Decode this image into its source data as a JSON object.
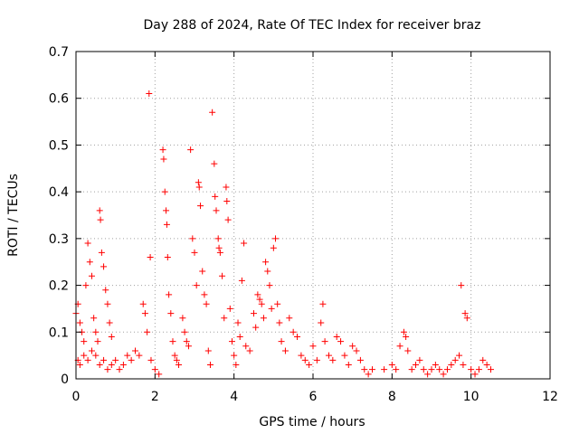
{
  "chart_data": {
    "type": "scatter",
    "title": "Day 288 of 2024, Rate Of TEC Index for receiver braz",
    "xlabel": "GPS time / hours",
    "ylabel": "ROTI / TECUs",
    "xlim": [
      0,
      12
    ],
    "ylim": [
      0,
      0.7
    ],
    "xticks": [
      0,
      2,
      4,
      6,
      8,
      10,
      12
    ],
    "yticks": [
      0,
      0.1,
      0.2,
      0.3,
      0.4,
      0.5,
      0.6,
      0.7
    ],
    "xtick_labels": [
      "0",
      "2",
      "4",
      "6",
      "8",
      "10",
      "12"
    ],
    "ytick_labels": [
      "0",
      "0.1",
      "0.2",
      "0.3",
      "0.4",
      "0.5",
      "0.6",
      "0.7"
    ],
    "grid": true,
    "marker": "+",
    "color": "#ff0000",
    "series": [
      {
        "points": [
          [
            0.0,
            0.14
          ],
          [
            0.05,
            0.16
          ],
          [
            0.1,
            0.12
          ],
          [
            0.15,
            0.1
          ],
          [
            0.2,
            0.08
          ],
          [
            0.25,
            0.2
          ],
          [
            0.3,
            0.29
          ],
          [
            0.35,
            0.25
          ],
          [
            0.4,
            0.22
          ],
          [
            0.45,
            0.13
          ],
          [
            0.5,
            0.1
          ],
          [
            0.55,
            0.08
          ],
          [
            0.6,
            0.36
          ],
          [
            0.62,
            0.34
          ],
          [
            0.65,
            0.27
          ],
          [
            0.7,
            0.24
          ],
          [
            0.75,
            0.19
          ],
          [
            0.8,
            0.16
          ],
          [
            0.85,
            0.12
          ],
          [
            0.9,
            0.09
          ],
          [
            0.05,
            0.04
          ],
          [
            0.1,
            0.03
          ],
          [
            0.2,
            0.05
          ],
          [
            0.3,
            0.04
          ],
          [
            0.4,
            0.06
          ],
          [
            0.5,
            0.05
          ],
          [
            0.6,
            0.03
          ],
          [
            0.7,
            0.04
          ],
          [
            0.8,
            0.02
          ],
          [
            0.9,
            0.03
          ],
          [
            1.0,
            0.04
          ],
          [
            1.1,
            0.02
          ],
          [
            1.2,
            0.03
          ],
          [
            1.3,
            0.05
          ],
          [
            1.4,
            0.04
          ],
          [
            1.5,
            0.06
          ],
          [
            1.6,
            0.05
          ],
          [
            1.7,
            0.16
          ],
          [
            1.75,
            0.14
          ],
          [
            1.8,
            0.1
          ],
          [
            1.85,
            0.61
          ],
          [
            1.88,
            0.26
          ],
          [
            1.9,
            0.04
          ],
          [
            2.0,
            0.02
          ],
          [
            2.1,
            0.01
          ],
          [
            2.2,
            0.49
          ],
          [
            2.22,
            0.47
          ],
          [
            2.25,
            0.4
          ],
          [
            2.28,
            0.36
          ],
          [
            2.3,
            0.33
          ],
          [
            2.32,
            0.26
          ],
          [
            2.35,
            0.18
          ],
          [
            2.4,
            0.14
          ],
          [
            2.45,
            0.08
          ],
          [
            2.5,
            0.05
          ],
          [
            2.55,
            0.04
          ],
          [
            2.6,
            0.03
          ],
          [
            2.7,
            0.13
          ],
          [
            2.75,
            0.1
          ],
          [
            2.8,
            0.08
          ],
          [
            2.85,
            0.07
          ],
          [
            2.9,
            0.49
          ],
          [
            2.95,
            0.3
          ],
          [
            3.0,
            0.27
          ],
          [
            3.05,
            0.2
          ],
          [
            3.1,
            0.42
          ],
          [
            3.12,
            0.41
          ],
          [
            3.15,
            0.37
          ],
          [
            3.2,
            0.23
          ],
          [
            3.25,
            0.18
          ],
          [
            3.3,
            0.16
          ],
          [
            3.35,
            0.06
          ],
          [
            3.4,
            0.03
          ],
          [
            3.45,
            0.57
          ],
          [
            3.5,
            0.46
          ],
          [
            3.52,
            0.39
          ],
          [
            3.55,
            0.36
          ],
          [
            3.6,
            0.3
          ],
          [
            3.62,
            0.28
          ],
          [
            3.65,
            0.27
          ],
          [
            3.7,
            0.22
          ],
          [
            3.75,
            0.13
          ],
          [
            3.8,
            0.41
          ],
          [
            3.82,
            0.38
          ],
          [
            3.85,
            0.34
          ],
          [
            3.9,
            0.15
          ],
          [
            3.95,
            0.08
          ],
          [
            4.0,
            0.05
          ],
          [
            4.05,
            0.03
          ],
          [
            4.1,
            0.12
          ],
          [
            4.15,
            0.09
          ],
          [
            4.2,
            0.21
          ],
          [
            4.25,
            0.29
          ],
          [
            4.3,
            0.07
          ],
          [
            4.4,
            0.06
          ],
          [
            4.5,
            0.14
          ],
          [
            4.55,
            0.11
          ],
          [
            4.6,
            0.18
          ],
          [
            4.65,
            0.17
          ],
          [
            4.7,
            0.16
          ],
          [
            4.75,
            0.13
          ],
          [
            4.8,
            0.25
          ],
          [
            4.85,
            0.23
          ],
          [
            4.9,
            0.2
          ],
          [
            4.95,
            0.15
          ],
          [
            5.0,
            0.28
          ],
          [
            5.05,
            0.3
          ],
          [
            5.1,
            0.16
          ],
          [
            5.15,
            0.12
          ],
          [
            5.2,
            0.08
          ],
          [
            5.3,
            0.06
          ],
          [
            5.4,
            0.13
          ],
          [
            5.5,
            0.1
          ],
          [
            5.6,
            0.09
          ],
          [
            5.7,
            0.05
          ],
          [
            5.8,
            0.04
          ],
          [
            5.9,
            0.03
          ],
          [
            6.0,
            0.07
          ],
          [
            6.1,
            0.04
          ],
          [
            6.2,
            0.12
          ],
          [
            6.25,
            0.16
          ],
          [
            6.3,
            0.08
          ],
          [
            6.4,
            0.05
          ],
          [
            6.5,
            0.04
          ],
          [
            6.6,
            0.09
          ],
          [
            6.7,
            0.08
          ],
          [
            6.8,
            0.05
          ],
          [
            6.9,
            0.03
          ],
          [
            7.0,
            0.07
          ],
          [
            7.1,
            0.06
          ],
          [
            7.2,
            0.04
          ],
          [
            7.3,
            0.02
          ],
          [
            7.4,
            0.01
          ],
          [
            7.5,
            0.02
          ],
          [
            7.8,
            0.02
          ],
          [
            8.0,
            0.03
          ],
          [
            8.1,
            0.02
          ],
          [
            8.2,
            0.07
          ],
          [
            8.3,
            0.1
          ],
          [
            8.35,
            0.09
          ],
          [
            8.4,
            0.06
          ],
          [
            8.5,
            0.02
          ],
          [
            8.6,
            0.03
          ],
          [
            8.7,
            0.04
          ],
          [
            8.8,
            0.02
          ],
          [
            8.9,
            0.01
          ],
          [
            9.0,
            0.02
          ],
          [
            9.1,
            0.03
          ],
          [
            9.2,
            0.02
          ],
          [
            9.3,
            0.01
          ],
          [
            9.4,
            0.02
          ],
          [
            9.5,
            0.03
          ],
          [
            9.6,
            0.04
          ],
          [
            9.7,
            0.05
          ],
          [
            9.75,
            0.2
          ],
          [
            9.8,
            0.03
          ],
          [
            9.85,
            0.14
          ],
          [
            9.9,
            0.13
          ],
          [
            10.0,
            0.02
          ],
          [
            10.1,
            0.01
          ],
          [
            10.2,
            0.02
          ],
          [
            10.3,
            0.04
          ],
          [
            10.4,
            0.03
          ],
          [
            10.5,
            0.02
          ]
        ]
      }
    ]
  }
}
